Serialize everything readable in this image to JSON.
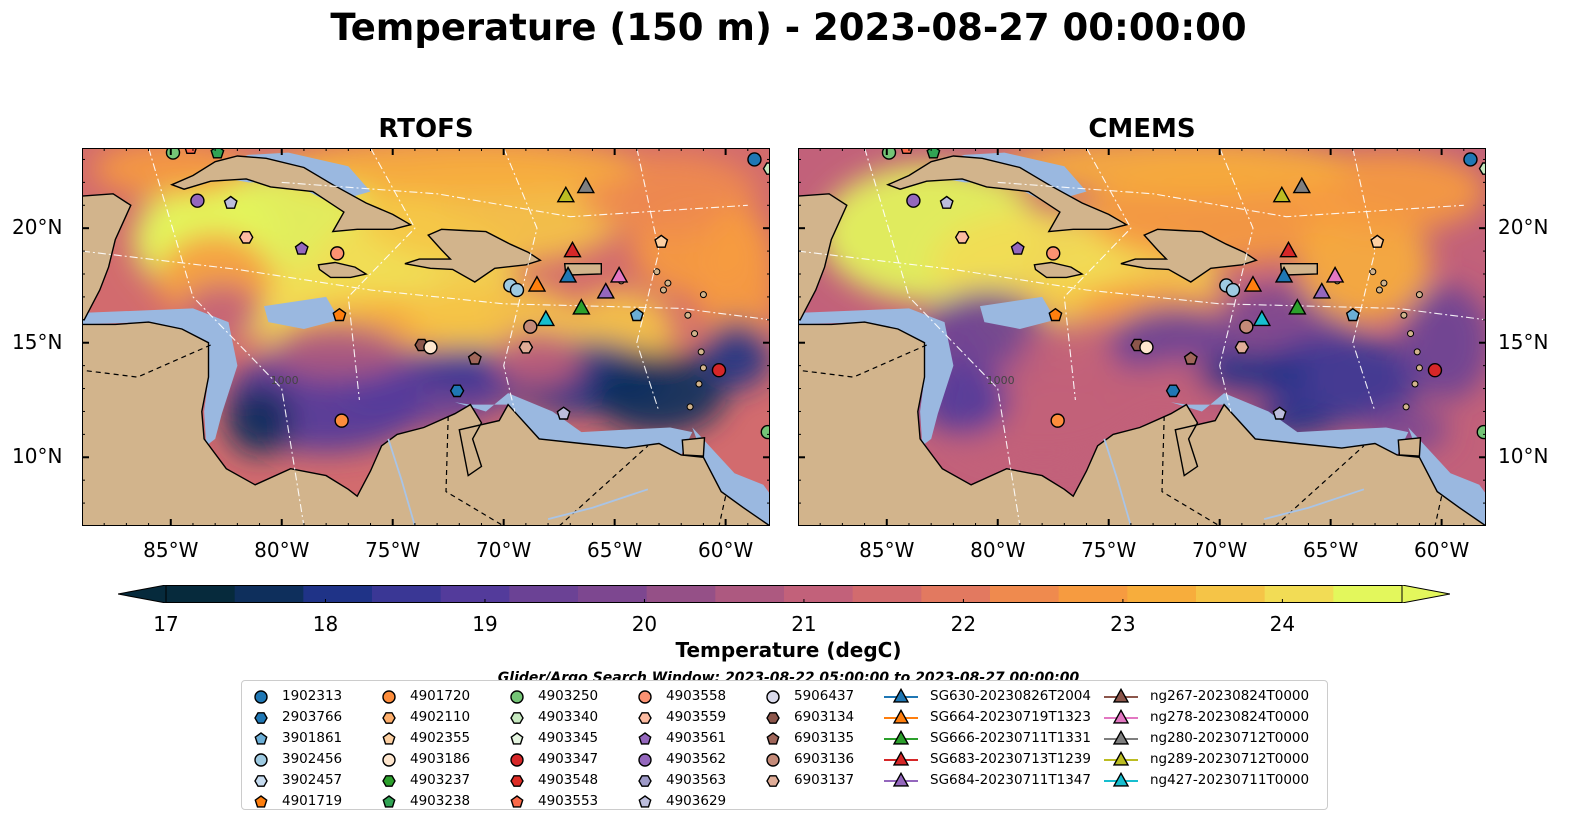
{
  "title": "Temperature (150 m) - 2023-08-27 00:00:00",
  "panels": [
    {
      "title": "RTOFS"
    },
    {
      "title": "CMEMS"
    }
  ],
  "map": {
    "lon_range": [
      -89,
      -58
    ],
    "lat_range": [
      7,
      23.5
    ],
    "lon_ticks": [
      "85°W",
      "80°W",
      "75°W",
      "70°W",
      "65°W",
      "60°W"
    ],
    "lon_tick_values": [
      -85,
      -80,
      -75,
      -70,
      -65,
      -60
    ],
    "lat_ticks": [
      "20°N",
      "15°N",
      "10°N"
    ],
    "lat_tick_values": [
      20,
      15,
      10
    ],
    "land_color": "#d2b48c",
    "shelf_color": "#9ab8e0",
    "deep_color": "#072030",
    "contour_label": "1000"
  },
  "colorbar": {
    "label": "Temperature (degC)",
    "ticks": [
      "17",
      "18",
      "19",
      "20",
      "21",
      "22",
      "23",
      "24"
    ],
    "tick_values": [
      17,
      18,
      19,
      20,
      21,
      22,
      23,
      24
    ],
    "range": [
      17,
      24.75
    ],
    "colors": [
      "#062a3c",
      "#0e2f5c",
      "#1f3387",
      "#3a3795",
      "#533b9b",
      "#6b4295",
      "#7d4790",
      "#955087",
      "#ad5980",
      "#c2617a",
      "#d26b6e",
      "#e27960",
      "#ef8a4e",
      "#f69b40",
      "#f7ad3c",
      "#f5c447",
      "#f2dc55",
      "#e3f75c"
    ]
  },
  "legend": {
    "title": "Glider/Argo Search Window: 2023-08-22 05:00:00 to 2023-08-27 00:00:00",
    "columns": [
      [
        {
          "label": "1902313",
          "marker": "circle",
          "color": "#1f77b4"
        },
        {
          "label": "2903766",
          "marker": "hexagon",
          "color": "#1f77b4"
        },
        {
          "label": "3901861",
          "marker": "pentagon",
          "color": "#6baed6"
        },
        {
          "label": "3902456",
          "marker": "circle",
          "color": "#9ecae1"
        },
        {
          "label": "3902457",
          "marker": "hexagon",
          "color": "#c6dbef"
        },
        {
          "label": "4901719",
          "marker": "pentagon",
          "color": "#ff7f0e"
        }
      ],
      [
        {
          "label": "4901720",
          "marker": "circle",
          "color": "#fd8d3c"
        },
        {
          "label": "4902110",
          "marker": "hexagon",
          "color": "#fdae6b"
        },
        {
          "label": "4902355",
          "marker": "pentagon",
          "color": "#fdd0a2"
        },
        {
          "label": "4903186",
          "marker": "circle",
          "color": "#fee6ce"
        },
        {
          "label": "4903237",
          "marker": "hexagon",
          "color": "#2ca02c"
        },
        {
          "label": "4903238",
          "marker": "pentagon",
          "color": "#31a354"
        }
      ],
      [
        {
          "label": "4903250",
          "marker": "circle",
          "color": "#74c476"
        },
        {
          "label": "4903340",
          "marker": "hexagon",
          "color": "#c7e9c0"
        },
        {
          "label": "4903345",
          "marker": "pentagon",
          "color": "#e5f5e0"
        },
        {
          "label": "4903347",
          "marker": "circle",
          "color": "#d62728"
        },
        {
          "label": "4903548",
          "marker": "hexagon",
          "color": "#de2d26"
        },
        {
          "label": "4903553",
          "marker": "pentagon",
          "color": "#fb6a4a"
        }
      ],
      [
        {
          "label": "4903558",
          "marker": "circle",
          "color": "#fc9272"
        },
        {
          "label": "4903559",
          "marker": "hexagon",
          "color": "#fcbba1"
        },
        {
          "label": "4903561",
          "marker": "pentagon",
          "color": "#9467bd"
        },
        {
          "label": "4903562",
          "marker": "circle",
          "color": "#9467bd"
        },
        {
          "label": "4903563",
          "marker": "hexagon",
          "color": "#9e9ac8"
        },
        {
          "label": "4903629",
          "marker": "pentagon",
          "color": "#bcbddc"
        }
      ],
      [
        {
          "label": "5906437",
          "marker": "circle",
          "color": "#dadaeb"
        },
        {
          "label": "6903134",
          "marker": "hexagon",
          "color": "#8c564b"
        },
        {
          "label": "6903135",
          "marker": "pentagon",
          "color": "#a0665a"
        },
        {
          "label": "6903136",
          "marker": "circle",
          "color": "#c48a78"
        },
        {
          "label": "6903137",
          "marker": "hexagon",
          "color": "#e0ad98"
        }
      ],
      [
        {
          "label": "SG630-20230826T2004",
          "marker": "triangle",
          "color": "#1f77b4"
        },
        {
          "label": "SG664-20230719T1323",
          "marker": "triangle",
          "color": "#ff7f0e"
        },
        {
          "label": "SG666-20230711T1331",
          "marker": "triangle",
          "color": "#2ca02c"
        },
        {
          "label": "SG683-20230713T1239",
          "marker": "triangle",
          "color": "#d62728"
        },
        {
          "label": "SG684-20230711T1347",
          "marker": "triangle",
          "color": "#9467bd"
        }
      ],
      [
        {
          "label": "ng267-20230824T0000",
          "marker": "triangle",
          "color": "#8c564b"
        },
        {
          "label": "ng278-20230824T0000",
          "marker": "triangle",
          "color": "#e377c2"
        },
        {
          "label": "ng280-20230712T0000",
          "marker": "triangle",
          "color": "#7f7f7f"
        },
        {
          "label": "ng289-20230712T0000",
          "marker": "triangle",
          "color": "#bcbd22"
        },
        {
          "label": "ng427-20230711T0000",
          "marker": "triangle",
          "color": "#17becf"
        }
      ]
    ]
  },
  "observations": [
    {
      "lon": -84.9,
      "lat": 23.3,
      "marker": "circle",
      "color": "#74c476"
    },
    {
      "lon": -84.1,
      "lat": 23.5,
      "marker": "pentagon",
      "color": "#fb6a4a"
    },
    {
      "lon": -82.9,
      "lat": 23.3,
      "marker": "pentagon",
      "color": "#31a354"
    },
    {
      "lon": -58.7,
      "lat": 23.0,
      "marker": "circle",
      "color": "#1f77b4"
    },
    {
      "lon": -83.8,
      "lat": 21.2,
      "marker": "circle",
      "color": "#9467bd"
    },
    {
      "lon": -82.3,
      "lat": 21.1,
      "marker": "pentagon",
      "color": "#bcbddc"
    },
    {
      "lon": -81.6,
      "lat": 19.6,
      "marker": "hexagon",
      "color": "#fcbba1"
    },
    {
      "lon": -79.1,
      "lat": 19.1,
      "marker": "pentagon",
      "color": "#9467bd"
    },
    {
      "lon": -77.5,
      "lat": 18.9,
      "marker": "circle",
      "color": "#fc9272"
    },
    {
      "lon": -62.9,
      "lat": 19.4,
      "marker": "pentagon",
      "color": "#fdd0a2"
    },
    {
      "lon": -69.7,
      "lat": 17.5,
      "marker": "circle",
      "color": "#9ecae1"
    },
    {
      "lon": -69.4,
      "lat": 17.3,
      "marker": "circle",
      "color": "#9ecae1"
    },
    {
      "lon": -77.4,
      "lat": 16.2,
      "marker": "pentagon",
      "color": "#ff7f0e"
    },
    {
      "lon": -64.0,
      "lat": 16.2,
      "marker": "pentagon",
      "color": "#6baed6"
    },
    {
      "lon": -68.8,
      "lat": 15.7,
      "marker": "circle",
      "color": "#c48a78"
    },
    {
      "lon": -73.7,
      "lat": 14.9,
      "marker": "hexagon",
      "color": "#8c564b"
    },
    {
      "lon": -73.3,
      "lat": 14.8,
      "marker": "circle",
      "color": "#fee6ce"
    },
    {
      "lon": -69.0,
      "lat": 14.8,
      "marker": "hexagon",
      "color": "#e0ad98"
    },
    {
      "lon": -71.3,
      "lat": 14.3,
      "marker": "pentagon",
      "color": "#a0665a"
    },
    {
      "lon": -60.3,
      "lat": 13.8,
      "marker": "circle",
      "color": "#d62728"
    },
    {
      "lon": -72.1,
      "lat": 12.9,
      "marker": "hexagon",
      "color": "#1f77b4"
    },
    {
      "lon": -77.3,
      "lat": 11.6,
      "marker": "circle",
      "color": "#fd8d3c"
    },
    {
      "lon": -67.3,
      "lat": 11.9,
      "marker": "pentagon",
      "color": "#bcbddc"
    },
    {
      "lon": -58.1,
      "lat": 11.1,
      "marker": "circle",
      "color": "#74c476"
    },
    {
      "lon": -58.0,
      "lat": 22.6,
      "marker": "hexagon",
      "color": "#c7e9c0"
    },
    {
      "lon": -67.2,
      "lat": 21.4,
      "marker": "triangle",
      "color": "#bcbd22"
    },
    {
      "lon": -66.3,
      "lat": 21.8,
      "marker": "triangle",
      "color": "#7f7f7f"
    },
    {
      "lon": -66.9,
      "lat": 19.0,
      "marker": "triangle",
      "color": "#d62728"
    },
    {
      "lon": -68.5,
      "lat": 17.5,
      "marker": "triangle",
      "color": "#ff7f0e"
    },
    {
      "lon": -67.1,
      "lat": 17.9,
      "marker": "triangle",
      "color": "#1f77b4"
    },
    {
      "lon": -65.4,
      "lat": 17.2,
      "marker": "triangle",
      "color": "#9467bd"
    },
    {
      "lon": -64.8,
      "lat": 17.9,
      "marker": "triangle",
      "color": "#e377c2"
    },
    {
      "lon": -66.5,
      "lat": 16.5,
      "marker": "triangle",
      "color": "#2ca02c"
    },
    {
      "lon": -68.1,
      "lat": 16.0,
      "marker": "triangle",
      "color": "#17becf"
    }
  ]
}
